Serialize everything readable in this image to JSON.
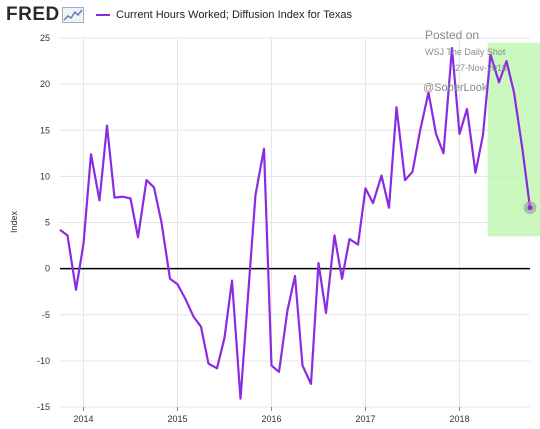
{
  "logo": {
    "text": "FRED"
  },
  "legend": {
    "label": "Current Hours Worked; Diffusion Index for Texas"
  },
  "watermark": {
    "line1": "Posted on",
    "line2": "WSJ The Daily Shot",
    "line3": "27-Nov-2018",
    "line4": "@SoberLook"
  },
  "colors": {
    "series": "#8a2be2",
    "highlight": "#b8f5a8",
    "zero_line": "#000000",
    "grid": "#e6e6e6"
  },
  "chart_data": {
    "type": "line",
    "ylabel": "Index",
    "ylim": [
      -15,
      25
    ],
    "yticks": [
      25,
      20,
      15,
      10,
      5,
      0,
      -5,
      -10,
      -15
    ],
    "xlim": [
      2013.75,
      2018.75
    ],
    "xticks": [
      {
        "x": 2014,
        "label": "2014"
      },
      {
        "x": 2015,
        "label": "2015"
      },
      {
        "x": 2016,
        "label": "2016"
      },
      {
        "x": 2017,
        "label": "2017"
      },
      {
        "x": 2018,
        "label": "2018"
      }
    ],
    "grid": true,
    "highlight_x": [
      2018.3,
      2018.9
    ],
    "highlight_y": [
      3.5,
      24.5
    ],
    "series": [
      {
        "values": [
          [
            2013.75,
            4.2
          ],
          [
            2013.83,
            3.6
          ],
          [
            2013.92,
            -2.3
          ],
          [
            2014.0,
            2.7
          ],
          [
            2014.08,
            12.4
          ],
          [
            2014.17,
            7.4
          ],
          [
            2014.25,
            15.5
          ],
          [
            2014.33,
            7.7
          ],
          [
            2014.42,
            7.8
          ],
          [
            2014.5,
            7.6
          ],
          [
            2014.58,
            3.4
          ],
          [
            2014.67,
            9.6
          ],
          [
            2014.75,
            8.8
          ],
          [
            2014.83,
            5.0
          ],
          [
            2014.92,
            -1.1
          ],
          [
            2015.0,
            -1.7
          ],
          [
            2015.08,
            -3.2
          ],
          [
            2015.17,
            -5.2
          ],
          [
            2015.25,
            -6.3
          ],
          [
            2015.33,
            -10.3
          ],
          [
            2015.42,
            -10.8
          ],
          [
            2015.5,
            -7.5
          ],
          [
            2015.58,
            -1.3
          ],
          [
            2015.67,
            -14.1
          ],
          [
            2015.75,
            -3.0
          ],
          [
            2015.83,
            8.0
          ],
          [
            2015.92,
            13.0
          ],
          [
            2016.0,
            -10.5
          ],
          [
            2016.08,
            -11.2
          ],
          [
            2016.17,
            -4.5
          ],
          [
            2016.25,
            -0.8
          ],
          [
            2016.33,
            -10.5
          ],
          [
            2016.42,
            -12.5
          ],
          [
            2016.5,
            0.6
          ],
          [
            2016.58,
            -4.8
          ],
          [
            2016.67,
            3.6
          ],
          [
            2016.75,
            -1.1
          ],
          [
            2016.83,
            3.2
          ],
          [
            2016.92,
            2.6
          ],
          [
            2017.0,
            8.7
          ],
          [
            2017.08,
            7.1
          ],
          [
            2017.17,
            10.1
          ],
          [
            2017.25,
            6.6
          ],
          [
            2017.33,
            17.5
          ],
          [
            2017.42,
            9.6
          ],
          [
            2017.5,
            10.5
          ],
          [
            2017.58,
            14.9
          ],
          [
            2017.67,
            19.1
          ],
          [
            2017.75,
            14.6
          ],
          [
            2017.83,
            12.5
          ],
          [
            2017.92,
            23.9
          ],
          [
            2018.0,
            14.6
          ],
          [
            2018.08,
            17.3
          ],
          [
            2018.17,
            10.4
          ],
          [
            2018.25,
            14.5
          ],
          [
            2018.33,
            23.2
          ],
          [
            2018.42,
            20.2
          ],
          [
            2018.5,
            22.5
          ],
          [
            2018.58,
            19.1
          ],
          [
            2018.67,
            12.9
          ],
          [
            2018.75,
            6.6
          ]
        ]
      }
    ]
  }
}
